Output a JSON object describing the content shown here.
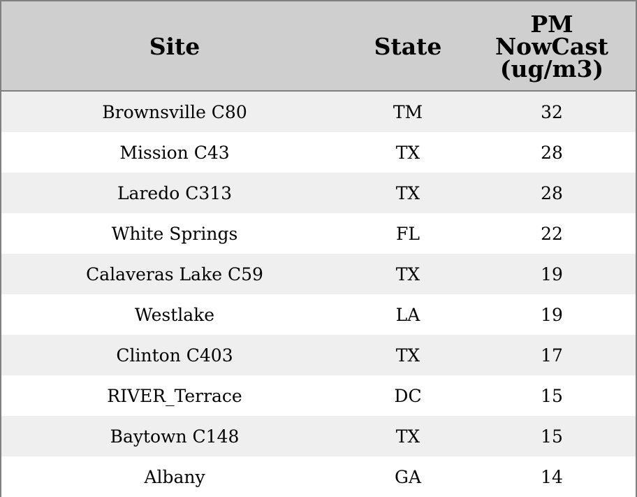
{
  "chart_data": {
    "type": "table",
    "columns": [
      "Site",
      "State",
      "PM NowCast (ug/m3)"
    ],
    "header_lines": {
      "site": [
        "Site"
      ],
      "state": [
        "State"
      ],
      "pm": [
        "PM",
        "NowCast",
        "(ug/m3)"
      ]
    },
    "rows": [
      {
        "site": "Brownsville C80",
        "state": "TM",
        "pm": 32
      },
      {
        "site": "Mission C43",
        "state": "TX",
        "pm": 28
      },
      {
        "site": "Laredo C313",
        "state": "TX",
        "pm": 28
      },
      {
        "site": "White Springs",
        "state": "FL",
        "pm": 22
      },
      {
        "site": "Calaveras Lake C59",
        "state": "TX",
        "pm": 19
      },
      {
        "site": "Westlake",
        "state": "LA",
        "pm": 19
      },
      {
        "site": "Clinton C403",
        "state": "TX",
        "pm": 17
      },
      {
        "site": "RIVER_Terrace",
        "state": "DC",
        "pm": 15
      },
      {
        "site": "Baytown C148",
        "state": "TX",
        "pm": 15
      },
      {
        "site": "Albany",
        "state": "GA",
        "pm": 14
      }
    ]
  },
  "colors": {
    "header_bg": "#cfcfcf",
    "row_shaded": "#efefef",
    "row_plain": "#ffffff",
    "border": "#808080"
  }
}
